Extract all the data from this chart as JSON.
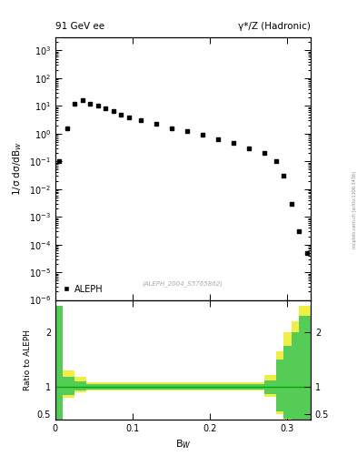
{
  "title_left": "91 GeV ee",
  "title_right": "γ*/Z (Hadronic)",
  "ylabel_main": "1/σ dσ/dB_W",
  "ylabel_ratio": "Ratio to ALEPH",
  "xlabel": "B_W",
  "watermark": "(ALEPH_2004_S5765862)",
  "side_label": "mcplots.cern.ch [arXiv:1306.3436]",
  "legend_label": "ALEPH",
  "data_x": [
    0.005,
    0.015,
    0.025,
    0.035,
    0.045,
    0.055,
    0.065,
    0.075,
    0.085,
    0.095,
    0.11,
    0.13,
    0.15,
    0.17,
    0.19,
    0.21,
    0.23,
    0.25,
    0.27,
    0.285,
    0.295,
    0.305,
    0.315,
    0.325
  ],
  "data_y": [
    0.1,
    1.5,
    12.0,
    16.0,
    12.0,
    10.0,
    8.0,
    6.5,
    5.0,
    4.0,
    3.0,
    2.2,
    1.6,
    1.2,
    0.9,
    0.65,
    0.45,
    0.3,
    0.2,
    0.1,
    0.03,
    0.003,
    0.0003,
    5e-05
  ],
  "ylim_main": [
    1e-06,
    3000.0
  ],
  "xlim": [
    0.0,
    0.33
  ],
  "ylim_ratio": [
    0.4,
    2.6
  ],
  "ratio_yticks": [
    0.5,
    1.0,
    2.0
  ],
  "ratio_green_band_x": [
    0.0,
    0.01,
    0.01,
    0.025,
    0.025,
    0.04,
    0.04,
    0.27,
    0.27,
    0.285,
    0.285,
    0.295,
    0.295,
    0.305,
    0.305,
    0.315,
    0.315,
    0.33,
    0.33
  ],
  "ratio_green_band_lo": [
    0.35,
    0.35,
    0.85,
    0.85,
    0.93,
    0.93,
    0.95,
    0.95,
    0.87,
    0.87,
    0.55,
    0.55,
    0.42,
    0.42,
    0.38,
    0.38,
    0.35,
    0.35,
    0.4
  ],
  "ratio_green_band_hi": [
    2.5,
    2.5,
    1.18,
    1.18,
    1.1,
    1.1,
    1.05,
    1.05,
    1.12,
    1.12,
    1.5,
    1.5,
    1.75,
    1.75,
    2.0,
    2.0,
    2.3,
    2.3,
    2.5
  ],
  "ratio_yellow_band_x": [
    0.0,
    0.01,
    0.01,
    0.025,
    0.025,
    0.04,
    0.04,
    0.27,
    0.27,
    0.285,
    0.285,
    0.295,
    0.295,
    0.305,
    0.305,
    0.315,
    0.315,
    0.33,
    0.33
  ],
  "ratio_yellow_band_lo": [
    0.4,
    0.4,
    0.8,
    0.8,
    0.9,
    0.9,
    0.93,
    0.93,
    0.82,
    0.82,
    0.5,
    0.5,
    0.38,
    0.38,
    0.35,
    0.35,
    0.32,
    0.32,
    0.4
  ],
  "ratio_yellow_band_hi": [
    2.5,
    2.5,
    1.3,
    1.3,
    1.18,
    1.18,
    1.08,
    1.08,
    1.22,
    1.22,
    1.65,
    1.65,
    2.0,
    2.0,
    2.2,
    2.2,
    2.5,
    2.5,
    2.5
  ],
  "marker_color": "black",
  "green_color": "#55cc55",
  "yellow_color": "#eeee44",
  "ratio_line_color": "#00aa00"
}
